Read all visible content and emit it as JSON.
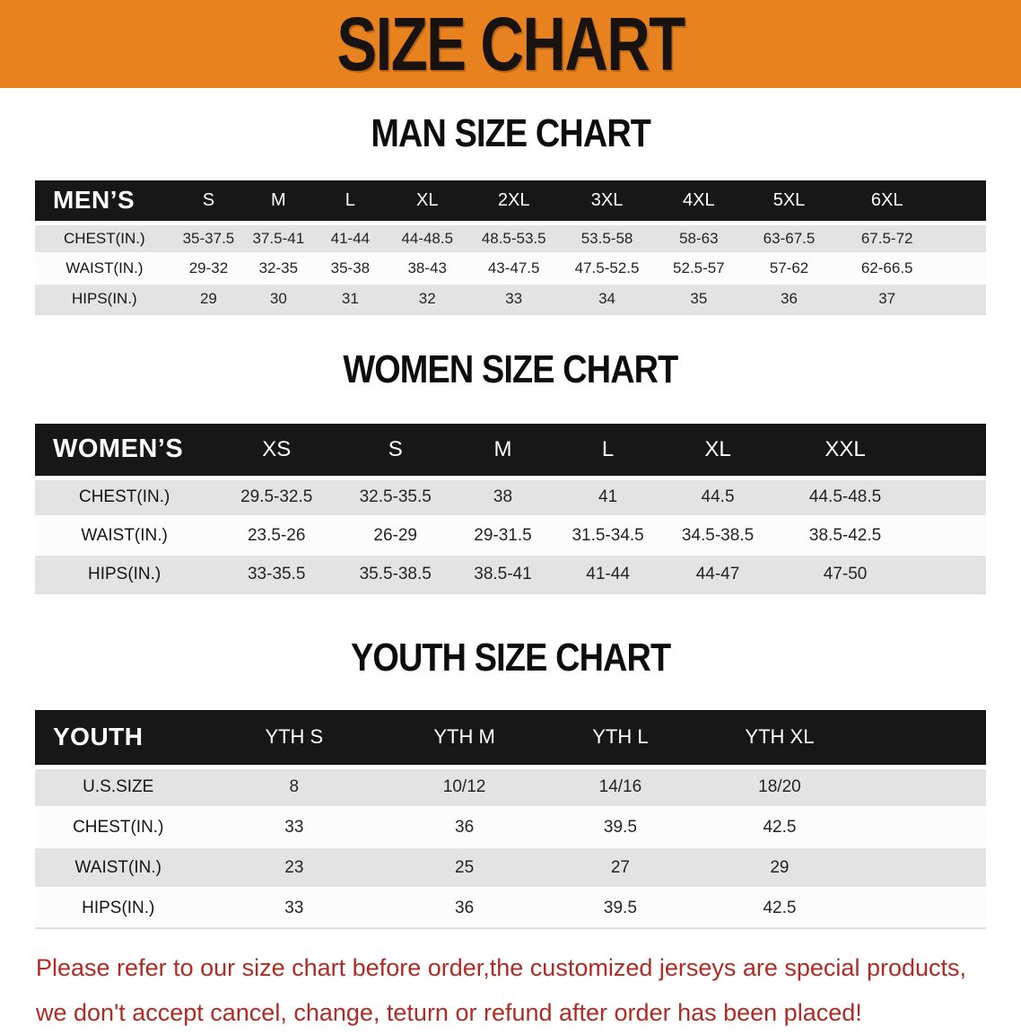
{
  "banner": {
    "title": "SIZE CHART",
    "bg_color": "#e8821e",
    "text_color": "#181310"
  },
  "colors": {
    "header_bar": "#171717",
    "stripe_row": "#e3e3e3",
    "white_row": "#fcfcfc",
    "note_text": "#b12b24"
  },
  "sections": {
    "man": {
      "heading": "MAN SIZE CHART"
    },
    "women": {
      "heading": "WOMEN SIZE CHART"
    },
    "youth": {
      "heading": "YOUTH SIZE CHART"
    }
  },
  "mens_table": {
    "header_label": "MEN’S",
    "columns": [
      "S",
      "M",
      "L",
      "XL",
      "2XL",
      "3XL",
      "4XL",
      "5XL",
      "6XL"
    ],
    "rows": [
      {
        "label": "CHEST(IN.)",
        "values": [
          "35-37.5",
          "37.5-41",
          "41-44",
          "44-48.5",
          "48.5-53.5",
          "53.5-58",
          "58-63",
          "63-67.5",
          "67.5-72"
        ]
      },
      {
        "label": "WAIST(IN.)",
        "values": [
          "29-32",
          "32-35",
          "35-38",
          "38-43",
          "43-47.5",
          "47.5-52.5",
          "52.5-57",
          "57-62",
          "62-66.5"
        ]
      },
      {
        "label": "HIPS(IN.)",
        "values": [
          "29",
          "30",
          "31",
          "32",
          "33",
          "34",
          "35",
          "36",
          "37"
        ]
      }
    ]
  },
  "womens_table": {
    "header_label": "WOMEN’S",
    "columns": [
      "XS",
      "S",
      "M",
      "L",
      "XL",
      "XXL"
    ],
    "rows": [
      {
        "label": "CHEST(IN.)",
        "values": [
          "29.5-32.5",
          "32.5-35.5",
          "38",
          "41",
          "44.5",
          "44.5-48.5"
        ]
      },
      {
        "label": "WAIST(IN.)",
        "values": [
          "23.5-26",
          "26-29",
          "29-31.5",
          "31.5-34.5",
          "34.5-38.5",
          "38.5-42.5"
        ]
      },
      {
        "label": "HIPS(IN.)",
        "values": [
          "33-35.5",
          "35.5-38.5",
          "38.5-41",
          "41-44",
          "44-47",
          "47-50"
        ]
      }
    ]
  },
  "youth_table": {
    "header_label": "YOUTH",
    "columns": [
      "YTH S",
      "YTH M",
      "YTH L",
      "YTH XL"
    ],
    "rows": [
      {
        "label": "U.S.SIZE",
        "values": [
          "8",
          "10/12",
          "14/16",
          "18/20"
        ]
      },
      {
        "label": "CHEST(IN.)",
        "values": [
          "33",
          "36",
          "39.5",
          "42.5"
        ]
      },
      {
        "label": "WAIST(IN.)",
        "values": [
          "23",
          "25",
          "27",
          "29"
        ]
      },
      {
        "label": "HIPS(IN.)",
        "values": [
          "33",
          "36",
          "39.5",
          "42.5"
        ]
      }
    ]
  },
  "note": {
    "line1": "Please refer to our size chart before order,the customized jerseys are special products,",
    "line2": "we don't accept cancel, change, teturn or refund after order has been placed!"
  }
}
